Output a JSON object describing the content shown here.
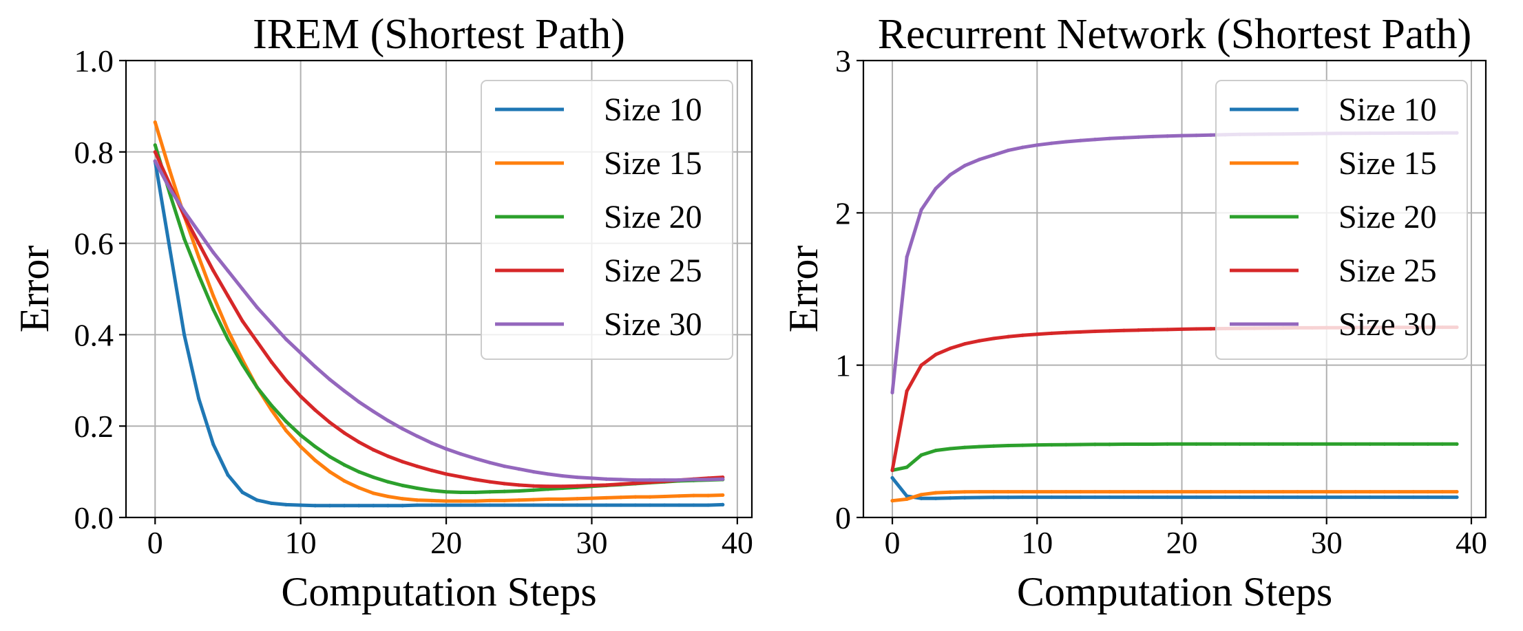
{
  "chart_data": [
    {
      "type": "line",
      "title": "IREM (Shortest Path)",
      "xlabel": "Computation Steps",
      "ylabel": "Error",
      "xlim": [
        -2,
        41
      ],
      "ylim": [
        0,
        1.0
      ],
      "xticks": [
        0,
        10,
        20,
        30,
        40
      ],
      "xtick_labels": [
        "0",
        "10",
        "20",
        "30",
        "40"
      ],
      "yticks": [
        0,
        0.2,
        0.4,
        0.6,
        0.8,
        1.0
      ],
      "ytick_labels": [
        "0.0",
        "0.2",
        "0.4",
        "0.6",
        "0.8",
        "1.0"
      ],
      "grid": true,
      "legend_position": "top-right",
      "series": [
        {
          "name": "Size 10",
          "color": "#1f77b4",
          "x": [
            0,
            1,
            2,
            3,
            4,
            5,
            6,
            7,
            8,
            9,
            10,
            11,
            12,
            13,
            14,
            15,
            16,
            17,
            18,
            19,
            20,
            21,
            22,
            23,
            24,
            25,
            26,
            27,
            28,
            29,
            30,
            31,
            32,
            33,
            34,
            35,
            36,
            37,
            38,
            39
          ],
          "values": [
            0.78,
            0.59,
            0.4,
            0.26,
            0.16,
            0.093,
            0.055,
            0.038,
            0.031,
            0.028,
            0.027,
            0.026,
            0.026,
            0.026,
            0.026,
            0.026,
            0.026,
            0.026,
            0.027,
            0.027,
            0.027,
            0.027,
            0.027,
            0.027,
            0.027,
            0.027,
            0.027,
            0.027,
            0.027,
            0.027,
            0.027,
            0.027,
            0.027,
            0.027,
            0.027,
            0.027,
            0.027,
            0.027,
            0.027,
            0.028
          ]
        },
        {
          "name": "Size 15",
          "color": "#ff7f0e",
          "x": [
            0,
            1,
            2,
            3,
            4,
            5,
            6,
            7,
            8,
            9,
            10,
            11,
            12,
            13,
            14,
            15,
            16,
            17,
            18,
            19,
            20,
            21,
            22,
            23,
            24,
            25,
            26,
            27,
            28,
            29,
            30,
            31,
            32,
            33,
            34,
            35,
            36,
            37,
            38,
            39
          ],
          "values": [
            0.865,
            0.76,
            0.66,
            0.57,
            0.485,
            0.41,
            0.345,
            0.285,
            0.235,
            0.19,
            0.155,
            0.125,
            0.1,
            0.08,
            0.065,
            0.053,
            0.046,
            0.041,
            0.038,
            0.037,
            0.036,
            0.036,
            0.036,
            0.037,
            0.037,
            0.038,
            0.039,
            0.04,
            0.04,
            0.041,
            0.042,
            0.043,
            0.044,
            0.045,
            0.045,
            0.046,
            0.047,
            0.048,
            0.048,
            0.049
          ]
        },
        {
          "name": "Size 20",
          "color": "#2ca02c",
          "x": [
            0,
            1,
            2,
            3,
            4,
            5,
            6,
            7,
            8,
            9,
            10,
            11,
            12,
            13,
            14,
            15,
            16,
            17,
            18,
            19,
            20,
            21,
            22,
            23,
            24,
            25,
            26,
            27,
            28,
            29,
            30,
            31,
            32,
            33,
            34,
            35,
            36,
            37,
            38,
            39
          ],
          "values": [
            0.815,
            0.71,
            0.61,
            0.53,
            0.455,
            0.39,
            0.335,
            0.285,
            0.245,
            0.21,
            0.18,
            0.155,
            0.133,
            0.115,
            0.1,
            0.088,
            0.078,
            0.07,
            0.064,
            0.059,
            0.056,
            0.055,
            0.055,
            0.056,
            0.057,
            0.058,
            0.06,
            0.062,
            0.064,
            0.066,
            0.068,
            0.07,
            0.072,
            0.074,
            0.076,
            0.078,
            0.08,
            0.081,
            0.082,
            0.083
          ]
        },
        {
          "name": "Size 25",
          "color": "#d62728",
          "x": [
            0,
            1,
            2,
            3,
            4,
            5,
            6,
            7,
            8,
            9,
            10,
            11,
            12,
            13,
            14,
            15,
            16,
            17,
            18,
            19,
            20,
            21,
            22,
            23,
            24,
            25,
            26,
            27,
            28,
            29,
            30,
            31,
            32,
            33,
            34,
            35,
            36,
            37,
            38,
            39
          ],
          "values": [
            0.8,
            0.73,
            0.66,
            0.6,
            0.54,
            0.485,
            0.43,
            0.385,
            0.34,
            0.3,
            0.265,
            0.235,
            0.208,
            0.185,
            0.165,
            0.148,
            0.134,
            0.122,
            0.112,
            0.103,
            0.095,
            0.089,
            0.083,
            0.078,
            0.074,
            0.071,
            0.069,
            0.068,
            0.068,
            0.069,
            0.07,
            0.071,
            0.073,
            0.075,
            0.077,
            0.079,
            0.082,
            0.084,
            0.086,
            0.088
          ]
        },
        {
          "name": "Size 30",
          "color": "#9467bd",
          "x": [
            0,
            1,
            2,
            3,
            4,
            5,
            6,
            7,
            8,
            9,
            10,
            11,
            12,
            13,
            14,
            15,
            16,
            17,
            18,
            19,
            20,
            21,
            22,
            23,
            24,
            25,
            26,
            27,
            28,
            29,
            30,
            31,
            32,
            33,
            34,
            35,
            36,
            37,
            38,
            39
          ],
          "values": [
            0.78,
            0.72,
            0.67,
            0.625,
            0.58,
            0.54,
            0.5,
            0.46,
            0.425,
            0.39,
            0.36,
            0.33,
            0.302,
            0.277,
            0.253,
            0.232,
            0.212,
            0.194,
            0.178,
            0.163,
            0.15,
            0.139,
            0.129,
            0.12,
            0.112,
            0.106,
            0.1,
            0.095,
            0.091,
            0.088,
            0.086,
            0.084,
            0.083,
            0.082,
            0.082,
            0.082,
            0.082,
            0.083,
            0.083,
            0.084
          ]
        }
      ]
    },
    {
      "type": "line",
      "title": "Recurrent Network (Shortest Path)",
      "xlabel": "Computation Steps",
      "ylabel": "Error",
      "xlim": [
        -2,
        41
      ],
      "ylim": [
        0,
        3
      ],
      "xticks": [
        0,
        10,
        20,
        30,
        40
      ],
      "xtick_labels": [
        "0",
        "10",
        "20",
        "30",
        "40"
      ],
      "yticks": [
        0,
        1,
        2,
        3
      ],
      "ytick_labels": [
        "0",
        "1",
        "2",
        "3"
      ],
      "grid": true,
      "legend_position": "top-right",
      "series": [
        {
          "name": "Size 10",
          "color": "#1f77b4",
          "x": [
            0,
            1,
            2,
            3,
            4,
            5,
            6,
            7,
            8,
            9,
            10,
            11,
            12,
            13,
            14,
            15,
            16,
            17,
            18,
            19,
            20,
            21,
            22,
            23,
            24,
            25,
            26,
            27,
            28,
            29,
            30,
            31,
            32,
            33,
            34,
            35,
            36,
            37,
            38,
            39
          ],
          "values": [
            0.26,
            0.14,
            0.125,
            0.125,
            0.128,
            0.13,
            0.131,
            0.132,
            0.132,
            0.133,
            0.133,
            0.133,
            0.133,
            0.133,
            0.133,
            0.133,
            0.133,
            0.133,
            0.133,
            0.133,
            0.133,
            0.133,
            0.133,
            0.133,
            0.133,
            0.133,
            0.133,
            0.133,
            0.133,
            0.133,
            0.133,
            0.133,
            0.133,
            0.133,
            0.133,
            0.133,
            0.133,
            0.133,
            0.133,
            0.133
          ]
        },
        {
          "name": "Size 15",
          "color": "#ff7f0e",
          "x": [
            0,
            1,
            2,
            3,
            4,
            5,
            6,
            7,
            8,
            9,
            10,
            11,
            12,
            13,
            14,
            15,
            16,
            17,
            18,
            19,
            20,
            21,
            22,
            23,
            24,
            25,
            26,
            27,
            28,
            29,
            30,
            31,
            32,
            33,
            34,
            35,
            36,
            37,
            38,
            39
          ],
          "values": [
            0.11,
            0.12,
            0.15,
            0.162,
            0.166,
            0.168,
            0.169,
            0.169,
            0.169,
            0.169,
            0.169,
            0.169,
            0.169,
            0.169,
            0.169,
            0.169,
            0.169,
            0.169,
            0.169,
            0.169,
            0.169,
            0.169,
            0.169,
            0.169,
            0.169,
            0.169,
            0.169,
            0.169,
            0.169,
            0.169,
            0.169,
            0.169,
            0.169,
            0.169,
            0.169,
            0.169,
            0.169,
            0.169,
            0.169,
            0.169
          ]
        },
        {
          "name": "Size 20",
          "color": "#2ca02c",
          "x": [
            0,
            1,
            2,
            3,
            4,
            5,
            6,
            7,
            8,
            9,
            10,
            11,
            12,
            13,
            14,
            15,
            16,
            17,
            18,
            19,
            20,
            21,
            22,
            23,
            24,
            25,
            26,
            27,
            28,
            29,
            30,
            31,
            32,
            33,
            34,
            35,
            36,
            37,
            38,
            39
          ],
          "values": [
            0.31,
            0.33,
            0.41,
            0.44,
            0.452,
            0.46,
            0.465,
            0.469,
            0.472,
            0.474,
            0.476,
            0.477,
            0.478,
            0.479,
            0.48,
            0.48,
            0.481,
            0.481,
            0.481,
            0.482,
            0.482,
            0.482,
            0.482,
            0.482,
            0.482,
            0.482,
            0.482,
            0.482,
            0.482,
            0.482,
            0.482,
            0.482,
            0.482,
            0.482,
            0.482,
            0.482,
            0.482,
            0.482,
            0.482,
            0.482
          ]
        },
        {
          "name": "Size 25",
          "color": "#d62728",
          "x": [
            0,
            1,
            2,
            3,
            4,
            5,
            6,
            7,
            8,
            9,
            10,
            11,
            12,
            13,
            14,
            15,
            16,
            17,
            18,
            19,
            20,
            21,
            22,
            23,
            24,
            25,
            26,
            27,
            28,
            29,
            30,
            31,
            32,
            33,
            34,
            35,
            36,
            37,
            38,
            39
          ],
          "values": [
            0.31,
            0.83,
            1.0,
            1.07,
            1.11,
            1.14,
            1.16,
            1.175,
            1.187,
            1.196,
            1.203,
            1.209,
            1.214,
            1.218,
            1.222,
            1.225,
            1.228,
            1.23,
            1.232,
            1.234,
            1.236,
            1.238,
            1.239,
            1.24,
            1.241,
            1.242,
            1.243,
            1.244,
            1.245,
            1.245,
            1.246,
            1.246,
            1.247,
            1.247,
            1.248,
            1.248,
            1.248,
            1.249,
            1.249,
            1.249
          ]
        },
        {
          "name": "Size 30",
          "color": "#9467bd",
          "x": [
            0,
            1,
            2,
            3,
            4,
            5,
            6,
            7,
            8,
            9,
            10,
            11,
            12,
            13,
            14,
            15,
            16,
            17,
            18,
            19,
            20,
            21,
            22,
            23,
            24,
            25,
            26,
            27,
            28,
            29,
            30,
            31,
            32,
            33,
            34,
            35,
            36,
            37,
            38,
            39
          ],
          "values": [
            0.82,
            1.71,
            2.02,
            2.16,
            2.25,
            2.31,
            2.35,
            2.38,
            2.41,
            2.43,
            2.445,
            2.457,
            2.467,
            2.475,
            2.482,
            2.488,
            2.493,
            2.497,
            2.501,
            2.504,
            2.507,
            2.509,
            2.511,
            2.513,
            2.515,
            2.516,
            2.517,
            2.518,
            2.519,
            2.52,
            2.521,
            2.522,
            2.522,
            2.523,
            2.523,
            2.524,
            2.524,
            2.524,
            2.525,
            2.525
          ]
        }
      ]
    }
  ]
}
